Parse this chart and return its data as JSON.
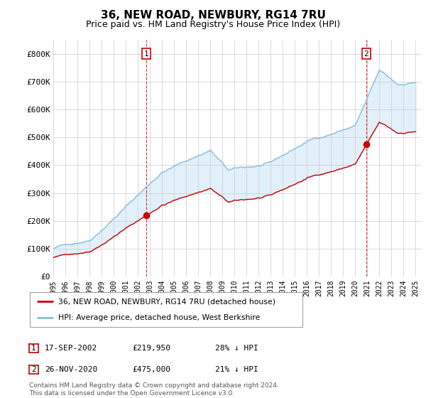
{
  "title": "36, NEW ROAD, NEWBURY, RG14 7RU",
  "subtitle": "Price paid vs. HM Land Registry's House Price Index (HPI)",
  "xlim_start": 1995.0,
  "xlim_end": 2025.5,
  "ylim_bottom": 0,
  "ylim_top": 850000,
  "yticks": [
    0,
    100000,
    200000,
    300000,
    400000,
    500000,
    600000,
    700000,
    800000
  ],
  "ytick_labels": [
    "£0",
    "£100K",
    "£200K",
    "£300K",
    "£400K",
    "£500K",
    "£600K",
    "£700K",
    "£800K"
  ],
  "xtick_years": [
    1995,
    1996,
    1997,
    1998,
    1999,
    2000,
    2001,
    2002,
    2003,
    2004,
    2005,
    2006,
    2007,
    2008,
    2009,
    2010,
    2011,
    2012,
    2013,
    2014,
    2015,
    2016,
    2017,
    2018,
    2019,
    2020,
    2021,
    2022,
    2023,
    2024,
    2025
  ],
  "xtick_labels": [
    "1995",
    "1996",
    "1997",
    "1998",
    "1999",
    "2000",
    "2001",
    "2002",
    "2003",
    "2004",
    "2005",
    "2006",
    "2007",
    "2008",
    "2009",
    "2010",
    "2011",
    "2012",
    "2013",
    "2014",
    "2015",
    "2016",
    "2017",
    "2018",
    "2019",
    "2020",
    "2021",
    "2022",
    "2023",
    "2024",
    "2025"
  ],
  "hpi_color": "#85bede",
  "hpi_fill_color": "#d6eaf8",
  "price_color": "#cc0000",
  "marker1_date": 2002.71,
  "marker1_value": 219950,
  "marker1_label": "1",
  "marker1_date_str": "17-SEP-2002",
  "marker1_price_str": "£219,950",
  "marker1_hpi_str": "28% ↓ HPI",
  "marker2_date": 2020.9,
  "marker2_value": 475000,
  "marker2_label": "2",
  "marker2_date_str": "26-NOV-2020",
  "marker2_price_str": "£475,000",
  "marker2_hpi_str": "21% ↓ HPI",
  "legend_label_price": "36, NEW ROAD, NEWBURY, RG14 7RU (detached house)",
  "legend_label_hpi": "HPI: Average price, detached house, West Berkshire",
  "footer_text": "Contains HM Land Registry data © Crown copyright and database right 2024.\nThis data is licensed under the Open Government Licence v3.0.",
  "background_color": "#ffffff",
  "grid_color": "#cccccc"
}
